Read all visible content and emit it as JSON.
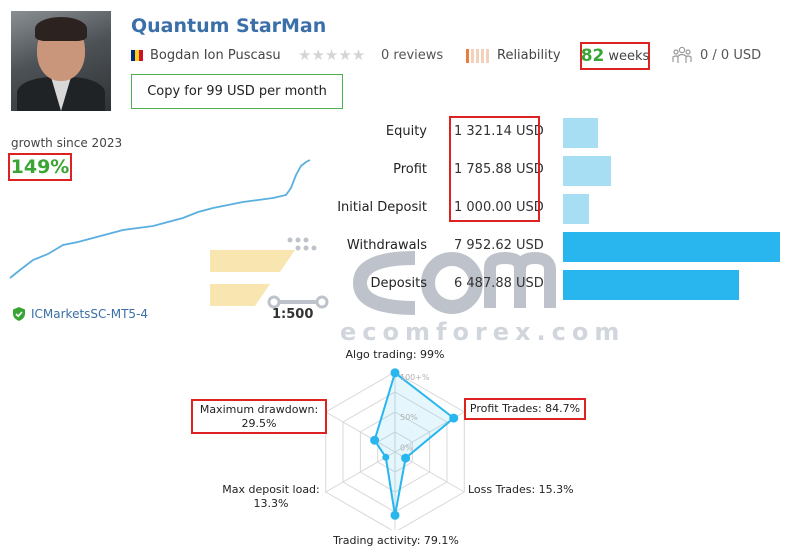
{
  "header": {
    "title": "Quantum StarMan",
    "author": "Bogdan Ion Puscasu",
    "stars": "★★★★★",
    "reviews": "0 reviews",
    "reliability": "Reliability",
    "weeks_value": "82",
    "weeks_label": "weeks",
    "subscribers": "0 / 0 USD",
    "copy_button": "Copy for 99 USD per month",
    "flag_colors": [
      "#002b7f",
      "#fcd116",
      "#ce1126"
    ]
  },
  "growth": {
    "label": "growth since 2023",
    "value": "149%"
  },
  "account": {
    "broker": "ICMarketsSC-MT5-4",
    "leverage": "1:500"
  },
  "stats": [
    {
      "label": "Equity",
      "value": "1 321.14 USD",
      "bar_fraction": 0.16,
      "color": "#a8def4"
    },
    {
      "label": "Profit",
      "value": "1 785.88 USD",
      "bar_fraction": 0.22,
      "color": "#a8def4"
    },
    {
      "label": "Initial Deposit",
      "value": "1 000.00 USD",
      "bar_fraction": 0.12,
      "color": "#a8def4"
    },
    {
      "label": "Withdrawals",
      "value": "7 952.62 USD",
      "bar_fraction": 1.0,
      "color": "#29b6ee"
    },
    {
      "label": "Deposits",
      "value": "6 487.88 USD",
      "bar_fraction": 0.81,
      "color": "#29b6ee"
    }
  ],
  "watermark": "ecomforex.com",
  "radar": {
    "algo": "Algo trading: 99%",
    "profit_trades": "Profit Trades: 84.7%",
    "loss_trades": "Loss Trades: 15.3%",
    "activity": "Trading activity: 79.1%",
    "deposit_load_1": "Max deposit load:",
    "deposit_load_2": "13.3%",
    "drawdown_1": "Maximum drawdown:",
    "drawdown_2": "29.5%",
    "tick_100": "100+%",
    "tick_50": "50%",
    "tick_0": "0%",
    "values": [
      0.99,
      0.847,
      0.153,
      0.791,
      0.133,
      0.295
    ]
  }
}
